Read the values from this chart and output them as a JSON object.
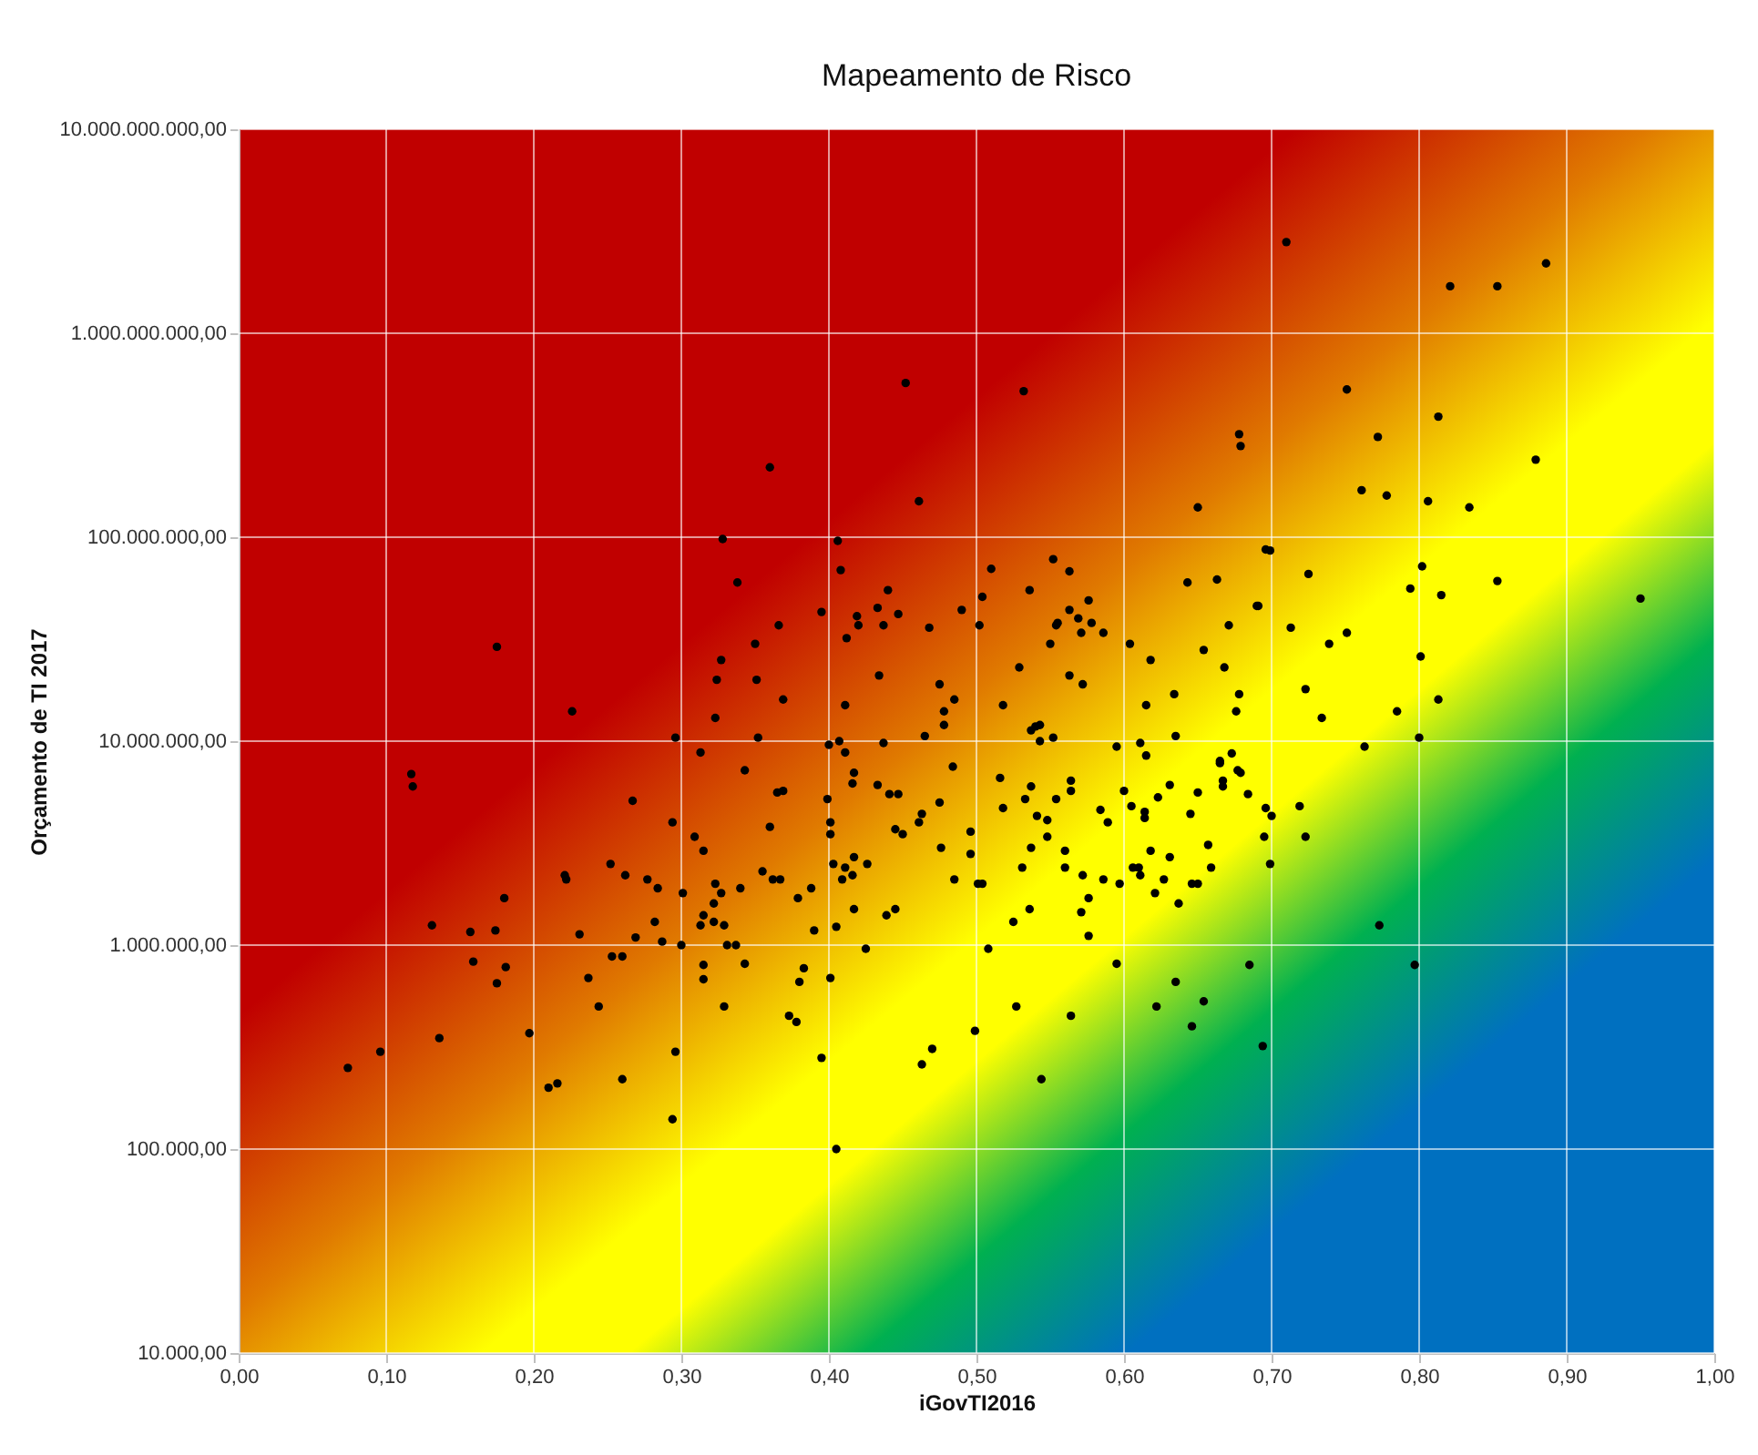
{
  "chart_data": {
    "type": "scatter",
    "title": "Mapeamento de Risco",
    "xlabel": "iGovTI2016",
    "ylabel": "Orçamento de TI 2017",
    "color": "#000000",
    "marker": "circle",
    "grid": true,
    "log": "y",
    "xlim": [
      0,
      1
    ],
    "ylim": [
      10000.0,
      10000000000.0
    ],
    "xticks": [
      {
        "value": 0,
        "label": "0,00"
      },
      {
        "value": 0.1,
        "label": "0,10"
      },
      {
        "value": 0.2,
        "label": "0,20"
      },
      {
        "value": 0.3,
        "label": "0,30"
      },
      {
        "value": 0.4,
        "label": "0,40"
      },
      {
        "value": 0.5,
        "label": "0,50"
      },
      {
        "value": 0.6,
        "label": "0,60"
      },
      {
        "value": 0.7,
        "label": "0,70"
      },
      {
        "value": 0.8,
        "label": "0,80"
      },
      {
        "value": 0.9,
        "label": "0,90"
      },
      {
        "value": 1,
        "label": "1,00"
      }
    ],
    "yticks": [
      {
        "value": 10000.0,
        "label": "10.000,00"
      },
      {
        "value": 100000.0,
        "label": "100.000,00"
      },
      {
        "value": 1000000.0,
        "label": "1.000.000,00"
      },
      {
        "value": 10000000.0,
        "label": "10.000.000,00"
      },
      {
        "value": 100000000.0,
        "label": "100.000.000,00"
      },
      {
        "value": 1000000000.0,
        "label": "1.000.000.000,00"
      },
      {
        "value": 10000000000.0,
        "label": "10.000.000.000,00"
      }
    ],
    "x": [
      0.71,
      0.821,
      0.853,
      0.886,
      0.751,
      0.772,
      0.813,
      0.879,
      0.761,
      0.778,
      0.806,
      0.834,
      0.699,
      0.725,
      0.802,
      0.794,
      0.815,
      0.853,
      0.95,
      0.691,
      0.713,
      0.739,
      0.751,
      0.801,
      0.723,
      0.734,
      0.785,
      0.813,
      0.8,
      0.763,
      0.328,
      0.338,
      0.175,
      0.327,
      0.324,
      0.35,
      0.351,
      0.226,
      0.323,
      0.296,
      0.313,
      0.452,
      0.532,
      0.36,
      0.461,
      0.678,
      0.679,
      0.65,
      0.406,
      0.408,
      0.51,
      0.552,
      0.563,
      0.44,
      0.536,
      0.576,
      0.643,
      0.663,
      0.696,
      0.69,
      0.395,
      0.419,
      0.42,
      0.433,
      0.447,
      0.437,
      0.49,
      0.504,
      0.502,
      0.468,
      0.366,
      0.412,
      0.555,
      0.554,
      0.563,
      0.569,
      0.578,
      0.571,
      0.586,
      0.55,
      0.604,
      0.618,
      0.654,
      0.671,
      0.668,
      0.369,
      0.434,
      0.475,
      0.485,
      0.478,
      0.478,
      0.411,
      0.518,
      0.529,
      0.563,
      0.572,
      0.615,
      0.634,
      0.678,
      0.676,
      0.352,
      0.4,
      0.407,
      0.411,
      0.437,
      0.465,
      0.537,
      0.54,
      0.543,
      0.543,
      0.552,
      0.595,
      0.611,
      0.635,
      0.615,
      0.665,
      0.673,
      0.117,
      0.118,
      0.343,
      0.267,
      0.294,
      0.309,
      0.315,
      0.252,
      0.221,
      0.222,
      0.262,
      0.277,
      0.284,
      0.301,
      0.323,
      0.327,
      0.34,
      0.18,
      0.322,
      0.282,
      0.315,
      0.313,
      0.322,
      0.329,
      0.131,
      0.157,
      0.174,
      0.231,
      0.269,
      0.287,
      0.3,
      0.331,
      0.337,
      0.159,
      0.181,
      0.175,
      0.253,
      0.26,
      0.237,
      0.244,
      0.315,
      0.315,
      0.343,
      0.329,
      0.197,
      0.136,
      0.096,
      0.074,
      0.21,
      0.216,
      0.26,
      0.296,
      0.294,
      0.484,
      0.417,
      0.416,
      0.433,
      0.441,
      0.447,
      0.365,
      0.369,
      0.399,
      0.36,
      0.401,
      0.401,
      0.445,
      0.45,
      0.461,
      0.463,
      0.475,
      0.516,
      0.537,
      0.533,
      0.518,
      0.541,
      0.548,
      0.554,
      0.564,
      0.564,
      0.496,
      0.496,
      0.476,
      0.485,
      0.501,
      0.504,
      0.525,
      0.536,
      0.548,
      0.537,
      0.531,
      0.56,
      0.56,
      0.572,
      0.576,
      0.571,
      0.576,
      0.584,
      0.589,
      0.586,
      0.6,
      0.605,
      0.614,
      0.614,
      0.623,
      0.631,
      0.65,
      0.645,
      0.665,
      0.667,
      0.667,
      0.677,
      0.679,
      0.684,
      0.696,
      0.695,
      0.618,
      0.631,
      0.606,
      0.61,
      0.611,
      0.597,
      0.627,
      0.621,
      0.637,
      0.646,
      0.65,
      0.657,
      0.659,
      0.403,
      0.411,
      0.416,
      0.409,
      0.417,
      0.426,
      0.355,
      0.362,
      0.367,
      0.379,
      0.388,
      0.39,
      0.405,
      0.417,
      0.439,
      0.445,
      0.425,
      0.508,
      0.595,
      0.635,
      0.654,
      0.622,
      0.646,
      0.685,
      0.694,
      0.383,
      0.38,
      0.401,
      0.373,
      0.378,
      0.395,
      0.463,
      0.47,
      0.499,
      0.527,
      0.564,
      0.544,
      0.405,
      0.7,
      0.719,
      0.723,
      0.699,
      0.773,
      0.797
    ],
    "values": [
      2800000000.0,
      1700000000.0,
      1700000000.0,
      2200000000.0,
      530000000.0,
      310000000.0,
      390000000.0,
      240000000.0,
      170000000.0,
      160000000.0,
      150000000.0,
      140000000.0,
      86000000.0,
      66000000.0,
      72000000.0,
      56000000.0,
      52000000.0,
      61000000.0,
      50000000.0,
      46000000.0,
      36000000.0,
      30000000.0,
      34000000.0,
      26000000.0,
      18000000.0,
      13000000.0,
      14000000.0,
      16000000.0,
      10400000.0,
      9400000.0,
      98000000.0,
      60000000.0,
      29000000.0,
      25000000.0,
      20000000.0,
      30000000.0,
      20000000.0,
      14000000.0,
      13000000.0,
      10400000.0,
      8800000.0,
      570000000.0,
      520000000.0,
      220000000.0,
      150000000.0,
      320000000.0,
      280000000.0,
      140000000.0,
      96000000.0,
      69000000.0,
      70000000.0,
      78000000.0,
      68000000.0,
      55000000.0,
      55000000.0,
      49000000.0,
      60000000.0,
      62000000.0,
      87000000.0,
      46000000.0,
      43000000.0,
      41000000.0,
      37000000.0,
      45000000.0,
      42000000.0,
      37000000.0,
      44000000.0,
      51000000.0,
      37000000.0,
      36000000.0,
      37000000.0,
      32000000.0,
      38000000.0,
      37000000.0,
      44000000.0,
      40000000.0,
      38000000.0,
      34000000.0,
      34000000.0,
      30000000.0,
      30000000.0,
      25000000.0,
      28000000.0,
      37000000.0,
      23000000.0,
      16000000.0,
      21000000.0,
      19000000.0,
      16000000.0,
      14000000.0,
      12000000.0,
      15000000.0,
      15000000.0,
      23000000.0,
      21000000.0,
      19000000.0,
      15000000.0,
      17000000.0,
      17000000.0,
      14000000.0,
      10400000.0,
      9600000.0,
      10000000.0,
      8800000.0,
      9800000.0,
      10600000.0,
      11300000.0,
      11800000.0,
      12000000.0,
      10000000.0,
      10400000.0,
      9400000.0,
      9800000.0,
      10600000.0,
      8500000.0,
      8000000.0,
      8700000.0,
      6900000.0,
      6000000.0,
      7200000.0,
      5100000.0,
      4000000.0,
      3400000.0,
      2900000.0,
      2500000.0,
      2200000.0,
      2100000.0,
      2200000.0,
      2100000.0,
      1900000.0,
      1800000.0,
      2000000.0,
      1800000.0,
      1900000.0,
      1700000.0,
      1600000.0,
      1300000.0,
      1400000.0,
      1250000.0,
      1300000.0,
      1250000.0,
      1250000.0,
      1160000.0,
      1180000.0,
      1130000.0,
      1090000.0,
      1040000.0,
      1000000.0,
      1000000.0,
      1000000.0,
      830000.0,
      780000.0,
      650000.0,
      880000.0,
      880000.0,
      690000.0,
      500000.0,
      800000.0,
      680000.0,
      810000.0,
      500000.0,
      370000.0,
      350000.0,
      300000.0,
      250000.0,
      200000.0,
      210000.0,
      220000.0,
      300000.0,
      140000.0,
      7500000.0,
      7000000.0,
      6200000.0,
      6100000.0,
      5500000.0,
      5500000.0,
      5600000.0,
      5700000.0,
      5200000.0,
      3800000.0,
      4000000.0,
      3500000.0,
      3700000.0,
      3500000.0,
      4000000.0,
      4400000.0,
      5000000.0,
      6600000.0,
      6000000.0,
      5200000.0,
      4700000.0,
      4300000.0,
      4100000.0,
      5200000.0,
      6400000.0,
      5700000.0,
      3600000.0,
      2800000.0,
      3000000.0,
      2100000.0,
      2000000.0,
      2000000.0,
      1300000.0,
      1500000.0,
      3400000.0,
      3000000.0,
      2400000.0,
      2900000.0,
      2400000.0,
      2200000.0,
      1700000.0,
      1450000.0,
      1110000.0,
      4600000.0,
      4000000.0,
      2100000.0,
      5700000.0,
      4800000.0,
      4500000.0,
      4200000.0,
      5300000.0,
      6100000.0,
      5600000.0,
      4400000.0,
      7800000.0,
      6400000.0,
      6000000.0,
      7200000.0,
      7000000.0,
      5500000.0,
      4700000.0,
      3400000.0,
      2900000.0,
      2700000.0,
      2400000.0,
      2400000.0,
      2200000.0,
      2000000.0,
      2100000.0,
      1800000.0,
      1600000.0,
      2000000.0,
      2000000.0,
      3100000.0,
      2400000.0,
      2500000.0,
      2400000.0,
      2200000.0,
      2100000.0,
      2700000.0,
      2500000.0,
      2300000.0,
      2100000.0,
      2100000.0,
      1700000.0,
      1900000.0,
      1180000.0,
      1230000.0,
      1500000.0,
      1400000.0,
      1500000.0,
      960000.0,
      960000.0,
      810000.0,
      660000.0,
      530000.0,
      500000.0,
      400000.0,
      800000.0,
      320000.0,
      770000.0,
      660000.0,
      690000.0,
      450000.0,
      420000.0,
      280000.0,
      260000.0,
      310000.0,
      380000.0,
      500000.0,
      450000.0,
      220000.0,
      100000.0,
      4300000.0,
      4800000.0,
      3400000.0,
      2500000.0,
      1250000.0,
      800000.0
    ]
  }
}
